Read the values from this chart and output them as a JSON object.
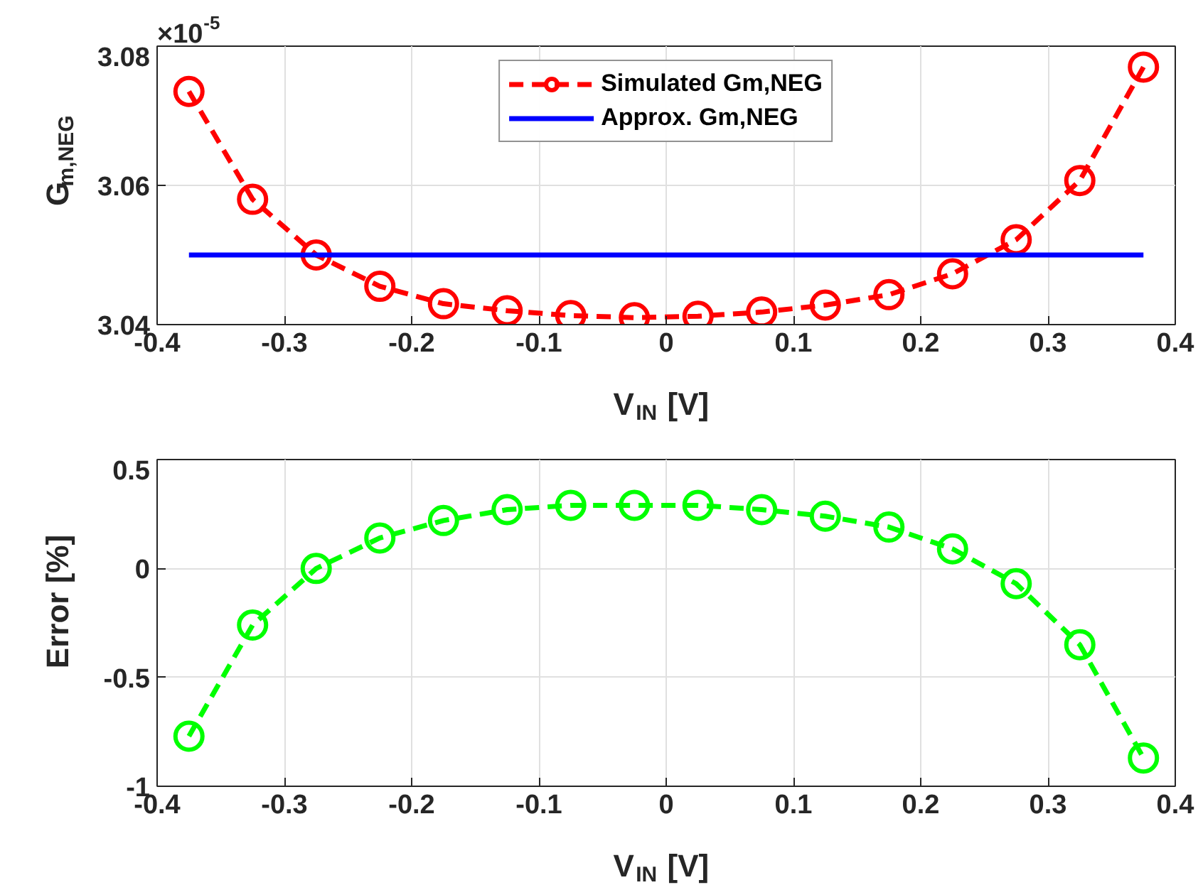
{
  "chart_data": [
    {
      "type": "line",
      "xlabel": "V$_{IN}$ [V]",
      "ylabel": "G$_{m,NEG}$",
      "annotations": [
        "×10$^{-5}$"
      ],
      "xlim": [
        -0.4,
        0.4
      ],
      "xticks": [
        -0.4,
        -0.3,
        -0.2,
        -0.1,
        0,
        0.1,
        0.2,
        0.3,
        0.4
      ],
      "ylim": [
        3.04,
        3.08
      ],
      "yticks": [
        3.04,
        3.06,
        3.08
      ],
      "grid": true,
      "legend": "top",
      "series": [
        {
          "name": "Simulated Gm,NEG",
          "color": "#ff0000",
          "marker": "circle",
          "line_style": "dashed",
          "x": [
            -0.375,
            -0.325,
            -0.275,
            -0.225,
            -0.175,
            -0.125,
            -0.075,
            -0.025,
            0.025,
            0.075,
            0.125,
            0.175,
            0.225,
            0.275,
            0.325,
            0.375
          ],
          "values": [
            3.0735,
            3.058,
            3.05,
            3.0455,
            3.043,
            3.042,
            3.0413,
            3.041,
            3.0412,
            3.0418,
            3.0428,
            3.0443,
            3.0473,
            3.0522,
            3.0607,
            3.077
          ]
        },
        {
          "name": "Approx. Gm,NEG",
          "color": "#0000ff",
          "marker": "none",
          "line_style": "solid",
          "x": [
            -0.375,
            0.375
          ],
          "values": [
            3.05,
            3.05
          ]
        }
      ]
    },
    {
      "type": "line",
      "xlabel": "V$_{IN}$ [V]",
      "ylabel": "Error [%]",
      "xlim": [
        -0.4,
        0.4
      ],
      "xticks": [
        -0.4,
        -0.3,
        -0.2,
        -0.1,
        0,
        0.1,
        0.2,
        0.3,
        0.4
      ],
      "ylim": [
        -1,
        0.5
      ],
      "yticks": [
        -1,
        -0.5,
        0,
        0.5
      ],
      "grid": true,
      "legend": false,
      "series": [
        {
          "color": "#00ff00",
          "marker": "circle",
          "line_style": "dashed",
          "x": [
            -0.375,
            -0.325,
            -0.275,
            -0.225,
            -0.175,
            -0.125,
            -0.075,
            -0.025,
            0.025,
            0.075,
            0.125,
            0.175,
            0.225,
            0.275,
            0.325,
            0.375
          ],
          "values": [
            -0.77,
            -0.26,
            0.0,
            0.14,
            0.22,
            0.27,
            0.29,
            0.29,
            0.29,
            0.27,
            0.24,
            0.19,
            0.09,
            -0.07,
            -0.35,
            -0.87
          ]
        }
      ]
    }
  ]
}
